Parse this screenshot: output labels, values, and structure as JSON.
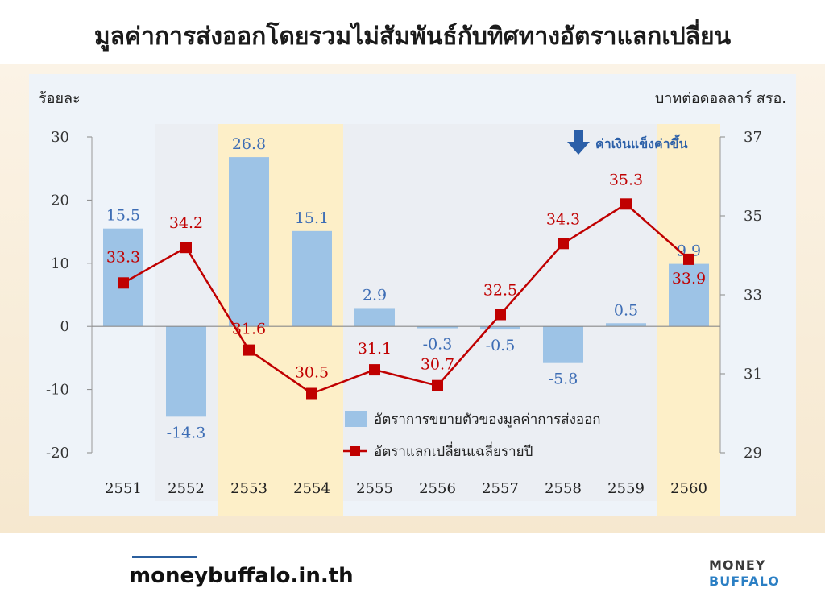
{
  "title": "มูลค่าการส่งออกโดยรวมไม่สัมพันธ์กับทิศทางอัตราแลกเปลี่ยน",
  "footer": {
    "site": "moneybuffalo.in.th",
    "brand_line1": "MONEY",
    "brand_line2": "BUFFALO"
  },
  "chart_data": {
    "type": "bar-line-combo",
    "left_axis_label": "ร้อยละ",
    "right_axis_label": "บาทต่อดอลลาร์ สรอ.",
    "left_ylim": [
      -20,
      30
    ],
    "left_ticks": [
      30,
      20,
      10,
      0,
      -10,
      -20
    ],
    "right_ylim": [
      29,
      37
    ],
    "right_ticks": [
      37,
      35,
      33,
      31,
      29
    ],
    "categories": [
      "2551",
      "2552",
      "2553",
      "2554",
      "2555",
      "2556",
      "2557",
      "2558",
      "2559",
      "2560"
    ],
    "highlight_categories": [
      "2553",
      "2554",
      "2560"
    ],
    "series": [
      {
        "name": "อัตราการขยายตัวของมูลค่าการส่งออก",
        "type": "bar",
        "axis": "left",
        "values": [
          15.5,
          -14.3,
          26.8,
          15.1,
          2.9,
          -0.3,
          -0.5,
          -5.8,
          0.5,
          9.9
        ],
        "labels": [
          "15.5",
          "-14.3",
          "26.8",
          "15.1",
          "2.9",
          "-0.3",
          "-0.5",
          "-5.8",
          "0.5",
          "9.9"
        ],
        "color": "#9dc3e6"
      },
      {
        "name": "อัตราแลกเปลี่ยนเฉลี่ยรายปี",
        "type": "line",
        "axis": "right",
        "values": [
          33.3,
          34.2,
          31.6,
          30.5,
          31.1,
          30.7,
          32.5,
          34.3,
          35.3,
          33.9
        ],
        "labels": [
          "33.3",
          "34.2",
          "31.6",
          "30.5",
          "31.1",
          "30.7",
          "32.5",
          "34.3",
          "35.3",
          "33.9"
        ],
        "color": "#c00000"
      }
    ],
    "annotation": "ค่าเงินแข็งค่าขึ้น",
    "colors": {
      "highlight": "#fdefc8",
      "shade": "#e9ebef",
      "bar_label": "#3d6db5",
      "line_label": "#c00000",
      "arrow": "#2b5fa8"
    }
  }
}
